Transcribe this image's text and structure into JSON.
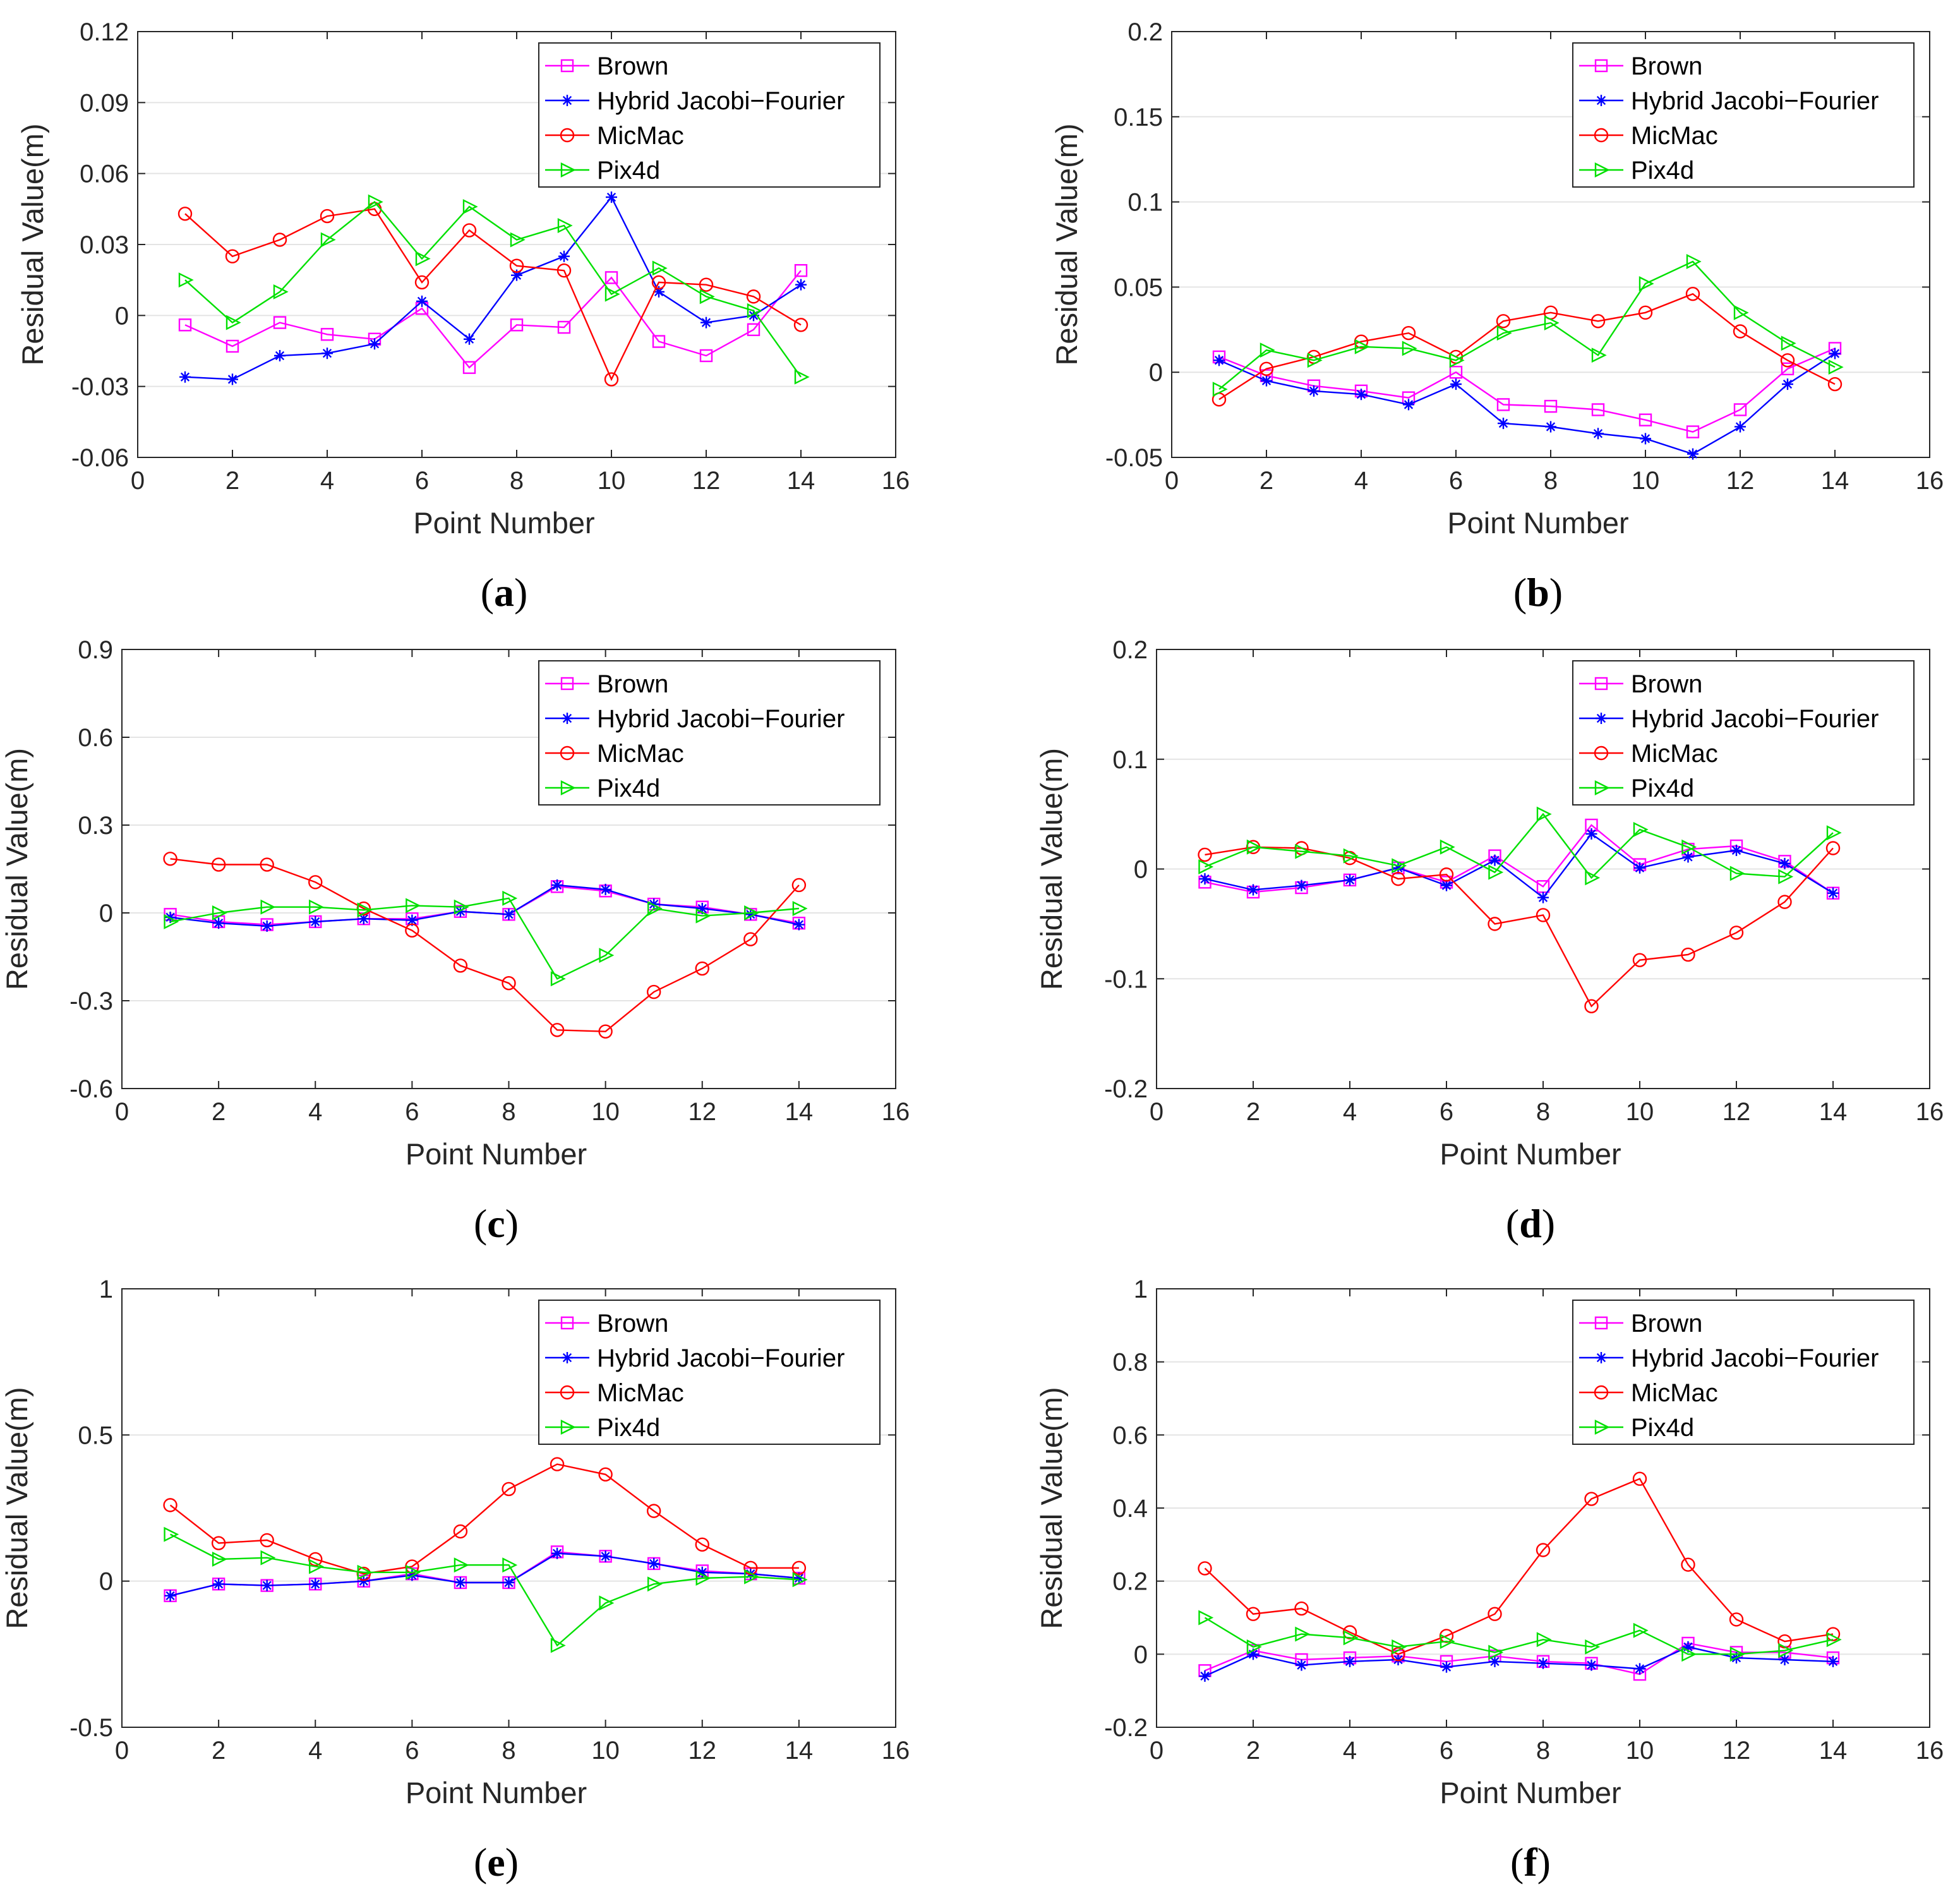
{
  "figure": {
    "legend_entries": [
      "Brown",
      "Hybrid Jacobi−Fourier",
      "MicMac",
      "Pix4d"
    ],
    "colors": {
      "Brown": "#ff00ff",
      "Hybrid Jacobi−Fourier": "#0000ff",
      "MicMac": "#ff0000",
      "Pix4d": "#00e000"
    },
    "markers": {
      "Brown": "square",
      "Hybrid Jacobi−Fourier": "asterisk",
      "MicMac": "circle",
      "Pix4d": "triangle-right"
    }
  },
  "chart_data": [
    {
      "panel": "a",
      "label": "(a)",
      "type": "line",
      "xlabel": "Point Number",
      "ylabel": "Residual Value(m)",
      "xlim": [
        0,
        16
      ],
      "ylim": [
        -0.06,
        0.12
      ],
      "xticks": [
        0,
        2,
        4,
        6,
        8,
        10,
        12,
        14,
        16
      ],
      "yticks": [
        -0.06,
        -0.03,
        0,
        0.03,
        0.06,
        0.09,
        0.12
      ],
      "ytick_labels": [
        "-0.06",
        "-0.03",
        "0",
        "0.03",
        "0.06",
        "0.09",
        "0.12"
      ],
      "legend": "top-right",
      "x": [
        1,
        2,
        3,
        4,
        5,
        6,
        7,
        8,
        9,
        10,
        11,
        12,
        13,
        14
      ],
      "series": [
        {
          "name": "Brown",
          "values": [
            -0.004,
            -0.013,
            -0.003,
            -0.008,
            -0.01,
            0.003,
            -0.022,
            -0.004,
            -0.005,
            0.016,
            -0.011,
            -0.017,
            -0.006,
            0.019
          ]
        },
        {
          "name": "Hybrid Jacobi−Fourier",
          "values": [
            -0.026,
            -0.027,
            -0.017,
            -0.016,
            -0.012,
            0.006,
            -0.01,
            0.017,
            0.025,
            0.05,
            0.01,
            -0.003,
            0.0,
            0.013
          ]
        },
        {
          "name": "MicMac",
          "values": [
            0.043,
            0.025,
            0.032,
            0.042,
            0.045,
            0.014,
            0.036,
            0.021,
            0.019,
            -0.027,
            0.014,
            0.013,
            0.008,
            -0.004
          ]
        },
        {
          "name": "Pix4d",
          "values": [
            0.015,
            -0.003,
            0.01,
            0.032,
            0.048,
            0.024,
            0.046,
            0.032,
            0.038,
            0.009,
            0.02,
            0.008,
            0.002,
            -0.026
          ]
        }
      ]
    },
    {
      "panel": "b",
      "label": "(b)",
      "type": "line",
      "xlabel": "Point Number",
      "ylabel": "Residual Value(m)",
      "xlim": [
        0,
        16
      ],
      "ylim": [
        -0.05,
        0.2
      ],
      "xticks": [
        0,
        2,
        4,
        6,
        8,
        10,
        12,
        14,
        16
      ],
      "yticks": [
        -0.05,
        0,
        0.05,
        0.1,
        0.15,
        0.2
      ],
      "ytick_labels": [
        "-0.05",
        "0",
        "0.05",
        "0.1",
        "0.15",
        "0.2"
      ],
      "legend": "top-right",
      "x": [
        1,
        2,
        3,
        4,
        5,
        6,
        7,
        8,
        9,
        10,
        11,
        12,
        13,
        14
      ],
      "series": [
        {
          "name": "Brown",
          "values": [
            0.009,
            -0.002,
            -0.008,
            -0.011,
            -0.015,
            0.0,
            -0.019,
            -0.02,
            -0.022,
            -0.028,
            -0.035,
            -0.022,
            0.002,
            0.014
          ]
        },
        {
          "name": "Hybrid Jacobi−Fourier",
          "values": [
            0.007,
            -0.005,
            -0.011,
            -0.013,
            -0.019,
            -0.007,
            -0.03,
            -0.032,
            -0.036,
            -0.039,
            -0.048,
            -0.032,
            -0.007,
            0.011
          ]
        },
        {
          "name": "MicMac",
          "values": [
            -0.016,
            0.002,
            0.009,
            0.018,
            0.023,
            0.009,
            0.03,
            0.035,
            0.03,
            0.035,
            0.046,
            0.024,
            0.007,
            -0.007
          ]
        },
        {
          "name": "Pix4d",
          "values": [
            -0.01,
            0.013,
            0.007,
            0.015,
            0.014,
            0.007,
            0.023,
            0.029,
            0.01,
            0.052,
            0.065,
            0.035,
            0.017,
            0.003
          ]
        }
      ]
    },
    {
      "panel": "c",
      "label": "(c)",
      "type": "line",
      "xlabel": "Point Number",
      "ylabel": "Residual Value(m)",
      "xlim": [
        0,
        16
      ],
      "ylim": [
        -0.6,
        0.9
      ],
      "xticks": [
        0,
        2,
        4,
        6,
        8,
        10,
        12,
        14,
        16
      ],
      "yticks": [
        -0.6,
        -0.3,
        0,
        0.3,
        0.6,
        0.9
      ],
      "ytick_labels": [
        "-0.6",
        "-0.3",
        "0",
        "0.3",
        "0.6",
        "0.9"
      ],
      "legend": "top-right",
      "x": [
        1,
        2,
        3,
        4,
        5,
        6,
        7,
        8,
        9,
        10,
        11,
        12,
        13,
        14
      ],
      "series": [
        {
          "name": "Brown",
          "values": [
            -0.005,
            -0.03,
            -0.04,
            -0.03,
            -0.02,
            -0.02,
            0.005,
            -0.005,
            0.09,
            0.075,
            0.03,
            0.02,
            -0.005,
            -0.035
          ]
        },
        {
          "name": "Hybrid Jacobi−Fourier",
          "values": [
            -0.015,
            -0.035,
            -0.045,
            -0.03,
            -0.02,
            -0.025,
            0.005,
            -0.005,
            0.095,
            0.08,
            0.03,
            0.015,
            -0.005,
            -0.04
          ]
        },
        {
          "name": "MicMac",
          "values": [
            0.185,
            0.165,
            0.165,
            0.105,
            0.015,
            -0.06,
            -0.18,
            -0.24,
            -0.4,
            -0.405,
            -0.27,
            -0.19,
            -0.09,
            0.095
          ]
        },
        {
          "name": "Pix4d",
          "values": [
            -0.03,
            0.0,
            0.02,
            0.02,
            0.01,
            0.025,
            0.02,
            0.05,
            -0.225,
            -0.145,
            0.015,
            -0.01,
            0.0,
            0.015
          ]
        }
      ]
    },
    {
      "panel": "d",
      "label": "(d)",
      "type": "line",
      "xlabel": "Point Number",
      "ylabel": "Residual Value(m)",
      "xlim": [
        0,
        16
      ],
      "ylim": [
        -0.2,
        0.2
      ],
      "xticks": [
        0,
        2,
        4,
        6,
        8,
        10,
        12,
        14,
        16
      ],
      "yticks": [
        -0.2,
        -0.1,
        0,
        0.1,
        0.2
      ],
      "ytick_labels": [
        "-0.2",
        "-0.1",
        "0",
        "0.1",
        "0.2"
      ],
      "legend": "top-right",
      "x": [
        1,
        2,
        3,
        4,
        5,
        6,
        7,
        8,
        9,
        10,
        11,
        12,
        13,
        14
      ],
      "series": [
        {
          "name": "Brown",
          "values": [
            -0.012,
            -0.021,
            -0.017,
            -0.01,
            0.001,
            -0.012,
            0.012,
            -0.016,
            0.04,
            0.004,
            0.018,
            0.021,
            0.007,
            -0.022
          ]
        },
        {
          "name": "Hybrid Jacobi−Fourier",
          "values": [
            -0.009,
            -0.019,
            -0.015,
            -0.01,
            0.001,
            -0.015,
            0.008,
            -0.026,
            0.032,
            0.001,
            0.011,
            0.017,
            0.005,
            -0.022
          ]
        },
        {
          "name": "MicMac",
          "values": [
            0.013,
            0.02,
            0.019,
            0.01,
            -0.009,
            -0.005,
            -0.05,
            -0.042,
            -0.125,
            -0.083,
            -0.078,
            -0.058,
            -0.03,
            0.019
          ]
        },
        {
          "name": "Pix4d",
          "values": [
            0.002,
            0.02,
            0.016,
            0.012,
            0.003,
            0.02,
            -0.003,
            0.05,
            -0.008,
            0.036,
            0.02,
            -0.004,
            -0.007,
            0.033
          ]
        }
      ]
    },
    {
      "panel": "e",
      "label": "(e)",
      "type": "line",
      "xlabel": "Point Number",
      "ylabel": "Residual Value(m)",
      "xlim": [
        0,
        16
      ],
      "ylim": [
        -0.5,
        1
      ],
      "xticks": [
        0,
        2,
        4,
        6,
        8,
        10,
        12,
        14,
        16
      ],
      "yticks": [
        -0.5,
        0,
        0.5,
        1
      ],
      "ytick_labels": [
        "-0.5",
        "0",
        "0.5",
        "1"
      ],
      "legend": "top-right",
      "x": [
        1,
        2,
        3,
        4,
        5,
        6,
        7,
        8,
        9,
        10,
        11,
        12,
        13,
        14
      ],
      "series": [
        {
          "name": "Brown",
          "values": [
            -0.05,
            -0.01,
            -0.015,
            -0.01,
            0.0,
            0.025,
            -0.005,
            -0.005,
            0.1,
            0.085,
            0.06,
            0.035,
            0.025,
            0.01
          ]
        },
        {
          "name": "Hybrid Jacobi−Fourier",
          "values": [
            -0.05,
            -0.01,
            -0.015,
            -0.01,
            0.0,
            0.02,
            -0.005,
            -0.005,
            0.095,
            0.085,
            0.06,
            0.03,
            0.025,
            0.01
          ]
        },
        {
          "name": "MicMac",
          "values": [
            0.26,
            0.13,
            0.14,
            0.075,
            0.025,
            0.05,
            0.17,
            0.315,
            0.4,
            0.365,
            0.24,
            0.125,
            0.045,
            0.045
          ]
        },
        {
          "name": "Pix4d",
          "values": [
            0.16,
            0.075,
            0.08,
            0.05,
            0.03,
            0.03,
            0.055,
            0.055,
            -0.22,
            -0.075,
            -0.01,
            0.01,
            0.015,
            0.005
          ]
        }
      ]
    },
    {
      "panel": "f",
      "label": "(f)",
      "type": "line",
      "xlabel": "Point Number",
      "ylabel": "Residual Value(m)",
      "xlim": [
        0,
        16
      ],
      "ylim": [
        -0.2,
        1
      ],
      "xticks": [
        0,
        2,
        4,
        6,
        8,
        10,
        12,
        14,
        16
      ],
      "yticks": [
        -0.2,
        0,
        0.2,
        0.4,
        0.6,
        0.8,
        1
      ],
      "ytick_labels": [
        "-0.2",
        "0",
        "0.2",
        "0.4",
        "0.6",
        "0.8",
        "1"
      ],
      "legend": "top-right",
      "x": [
        1,
        2,
        3,
        4,
        5,
        6,
        7,
        8,
        9,
        10,
        11,
        12,
        13,
        14
      ],
      "series": [
        {
          "name": "Brown",
          "values": [
            -0.045,
            0.01,
            -0.015,
            -0.01,
            -0.005,
            -0.02,
            -0.005,
            -0.02,
            -0.025,
            -0.055,
            0.03,
            0.005,
            0.005,
            -0.01
          ]
        },
        {
          "name": "Hybrid Jacobi−Fourier",
          "values": [
            -0.06,
            0.0,
            -0.03,
            -0.02,
            -0.015,
            -0.035,
            -0.02,
            -0.025,
            -0.03,
            -0.04,
            0.02,
            -0.01,
            -0.015,
            -0.02
          ]
        },
        {
          "name": "MicMac",
          "values": [
            0.235,
            0.11,
            0.125,
            0.06,
            0.0,
            0.05,
            0.11,
            0.285,
            0.425,
            0.48,
            0.245,
            0.095,
            0.035,
            0.055
          ]
        },
        {
          "name": "Pix4d",
          "values": [
            0.1,
            0.02,
            0.055,
            0.045,
            0.02,
            0.035,
            0.005,
            0.04,
            0.02,
            0.065,
            0.0,
            0.0,
            0.01,
            0.04
          ]
        }
      ]
    }
  ]
}
